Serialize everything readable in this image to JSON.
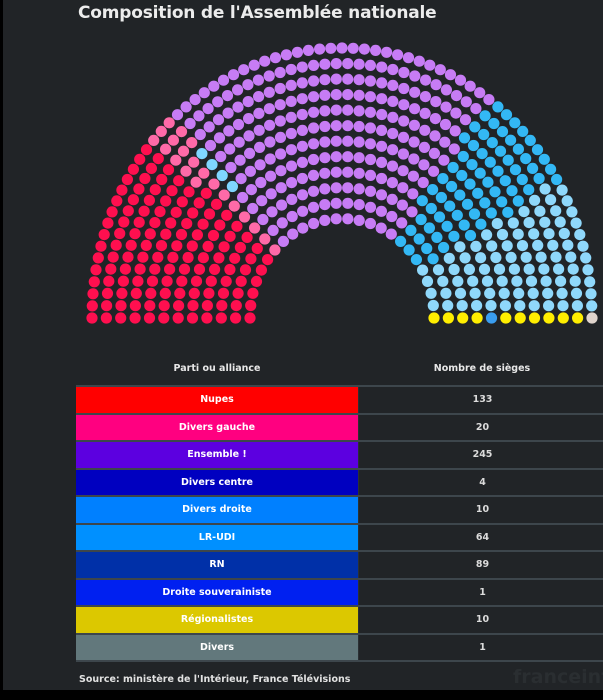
{
  "title": "Composition de l'Assemblée nationale",
  "table": {
    "headers": {
      "party": "Parti ou alliance",
      "seats": "Nombre de sièges"
    },
    "rows": [
      {
        "party": "Nupes",
        "seats": "133",
        "color": "#ff0000"
      },
      {
        "party": "Divers gauche",
        "seats": "20",
        "color": "#ff0080"
      },
      {
        "party": "Ensemble !",
        "seats": "245",
        "color": "#5c00e0"
      },
      {
        "party": "Divers centre",
        "seats": "4",
        "color": "#0000c0"
      },
      {
        "party": "Divers droite",
        "seats": "10",
        "color": "#0080ff"
      },
      {
        "party": "LR-UDI",
        "seats": "64",
        "color": "#0090ff"
      },
      {
        "party": "RN",
        "seats": "89",
        "color": "#0030a8"
      },
      {
        "party": "Droite souverainiste",
        "seats": "1",
        "color": "#0020f0"
      },
      {
        "party": "Régionalistes",
        "seats": "10",
        "color": "#dcc800"
      },
      {
        "party": "Divers",
        "seats": "1",
        "color": "#62787c"
      }
    ]
  },
  "source": "Source: ministère de l'Intérieur, France Télévisions",
  "logo": "franceinfo",
  "chart_data": {
    "type": "hemicycle",
    "title": "Composition de l'Assemblée nationale",
    "total_seats": 577,
    "rings": 12,
    "series": [
      {
        "name": "Nupes",
        "value": 133,
        "dot_color": "#ff0f4f"
      },
      {
        "name": "Divers gauche",
        "value": 20,
        "dot_color": "#ff6aa8"
      },
      {
        "name": "Divers centre",
        "value": 4,
        "dot_color": "#7fd6ff"
      },
      {
        "name": "Ensemble !",
        "value": 245,
        "dot_color": "#c77cf5"
      },
      {
        "name": "Divers droite",
        "value": 10,
        "dot_color": "#33b8f5"
      },
      {
        "name": "LR-UDI",
        "value": 64,
        "dot_color": "#33b8f5"
      },
      {
        "name": "RN",
        "value": 89,
        "dot_color": "#8fd8fb"
      },
      {
        "name": "Droite souverainiste",
        "value": 1,
        "dot_color": "#3a9ef0"
      },
      {
        "name": "Régionalistes",
        "value": 10,
        "dot_color": "#ffee00"
      },
      {
        "name": "Divers",
        "value": 1,
        "dot_color": "#e0d4cc"
      }
    ]
  }
}
